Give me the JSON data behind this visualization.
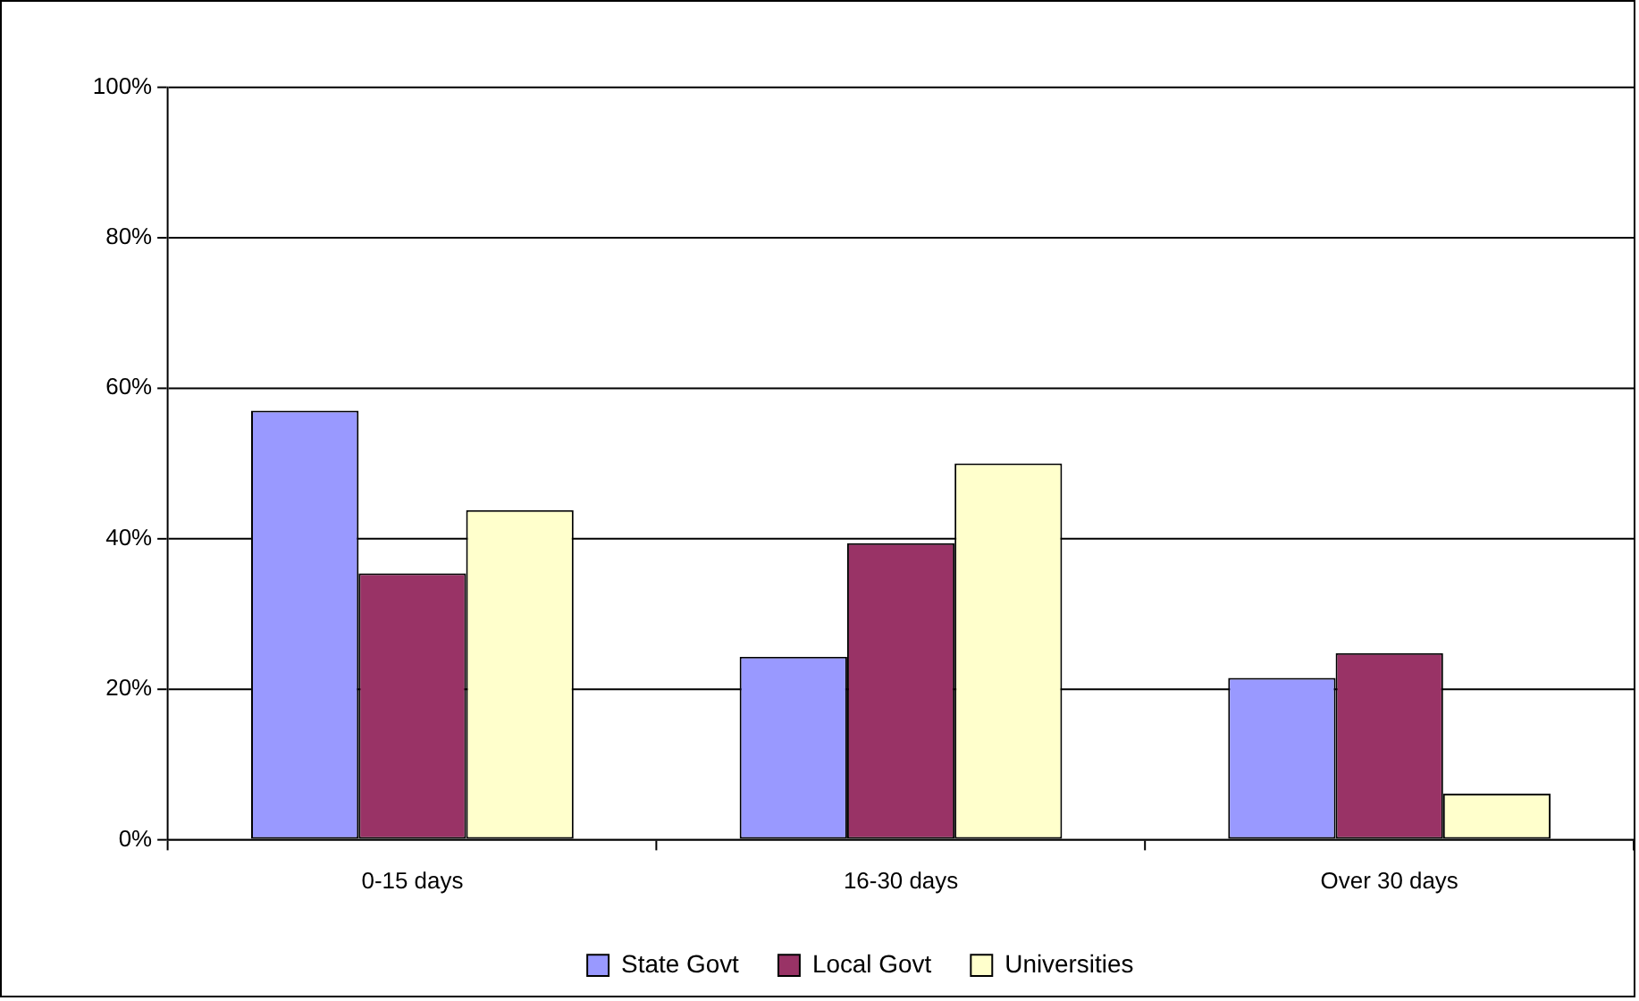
{
  "chart_data": {
    "type": "bar",
    "categories": [
      "0-15 days",
      "16-30 days",
      "Over 30 days"
    ],
    "series": [
      {
        "name": "State Govt",
        "color": "#9999ff",
        "values": [
          57,
          24.3,
          21.5
        ]
      },
      {
        "name": "Local Govt",
        "color": "#993366",
        "values": [
          35.4,
          39.4,
          24.8
        ]
      },
      {
        "name": "Universities",
        "color": "#ffffcc",
        "values": [
          43.8,
          50,
          6.1
        ]
      }
    ],
    "ylim": [
      0,
      100
    ],
    "yticks": [
      {
        "value": 0,
        "label": "0%"
      },
      {
        "value": 20,
        "label": "20%"
      },
      {
        "value": 40,
        "label": "40%"
      },
      {
        "value": 60,
        "label": "60%"
      },
      {
        "value": 80,
        "label": "80%"
      },
      {
        "value": 100,
        "label": "100%"
      }
    ],
    "grid": "y",
    "legend": "bottom"
  }
}
